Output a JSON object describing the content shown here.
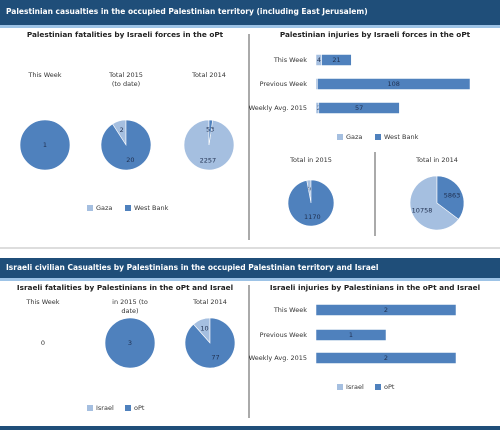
{
  "banners": [
    "Palestinian casualties in the occupied Palestinian territory (including East Jerusalem)",
    "Israeli civilian Casualties by Palestinians in the occupied Palestinian territory and Israel"
  ],
  "chart_data": [
    {
      "type": "pie",
      "title": "Palestinian fatalities by Israeli forces in the oPt",
      "categories": [
        "Gaza",
        "West Bank"
      ],
      "colors": [
        "#a5bfe0",
        "#4f81bd"
      ],
      "legend": true,
      "pies": [
        {
          "title": [
            "This Week"
          ],
          "values": [
            0,
            1
          ]
        },
        {
          "title": [
            "Total 2015",
            "(to date)"
          ],
          "values": [
            2,
            20
          ]
        },
        {
          "title": [
            "Total 2014"
          ],
          "values": [
            2257,
            53
          ]
        }
      ]
    },
    {
      "type": "bar",
      "orientation": "horizontal",
      "stacked": true,
      "title": "Palestinian injuries by Israeli forces in the oPt",
      "categories": [
        "This Week",
        "Previous Week",
        "Weekly Avg. 2015"
      ],
      "legend": true,
      "series": [
        {
          "name": "Gaza",
          "color": "#a5bfe0",
          "values": [
            4,
            1,
            2
          ]
        },
        {
          "name": "West Bank",
          "color": "#4f81bd",
          "values": [
            21,
            108,
            57
          ]
        }
      ]
    },
    {
      "type": "pie",
      "categories": [
        "Gaza",
        "West Bank"
      ],
      "colors": [
        "#a5bfe0",
        "#4f81bd"
      ],
      "legend": false,
      "pies": [
        {
          "title": [
            "Total in 2015"
          ],
          "values": [
            36,
            1170
          ]
        },
        {
          "title": [
            "Total in 2014"
          ],
          "values": [
            10758,
            5863
          ]
        }
      ]
    },
    {
      "type": "pie",
      "title": "Israeli fatalities by Palestinians in the oPt and Israel",
      "categories": [
        "Israel",
        "oPt"
      ],
      "colors": [
        "#a5bfe0",
        "#4f81bd"
      ],
      "legend": true,
      "pies": [
        {
          "title": [
            "This Week"
          ],
          "value": 0
        },
        {
          "title": [
            "in 2015 (to",
            "date)"
          ],
          "values": [
            0,
            3
          ]
        },
        {
          "title": [
            "Total 2014"
          ],
          "values": [
            10,
            77
          ]
        }
      ]
    },
    {
      "type": "bar",
      "orientation": "horizontal",
      "stacked": true,
      "title": "Israeli injuries by Palestinians in the oPt and Israel",
      "categories": [
        "This Week",
        "Previous Week",
        "Weekly Avg. 2015"
      ],
      "legend": true,
      "series": [
        {
          "name": "Israel",
          "color": "#a5bfe0",
          "values": [
            0,
            0,
            0
          ]
        },
        {
          "name": "oPt",
          "color": "#4f81bd",
          "values": [
            2,
            1,
            2
          ]
        }
      ]
    }
  ]
}
